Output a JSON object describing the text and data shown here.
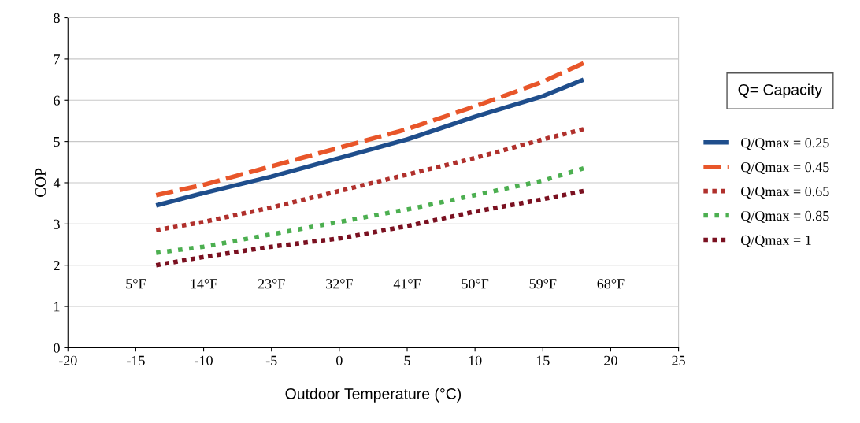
{
  "chart_data": {
    "type": "line",
    "xlabel": "Outdoor Temperature (°C)",
    "ylabel": "COP",
    "x": [
      -13.5,
      -10,
      -5,
      0,
      5,
      10,
      15,
      18
    ],
    "xlim": [
      -20,
      25
    ],
    "xticks": [
      -20,
      -15,
      -10,
      -5,
      0,
      5,
      10,
      15,
      20,
      25
    ],
    "ylim": [
      0,
      8
    ],
    "yticks": [
      0,
      1,
      2,
      3,
      4,
      5,
      6,
      7,
      8
    ],
    "grid": "y",
    "legend": "right",
    "marker": "none",
    "series": [
      {
        "name": "Q/Qmax = 0.25",
        "color": "#1f4e8c",
        "line_style": "solid",
        "values": [
          3.45,
          3.75,
          4.15,
          4.6,
          5.05,
          5.6,
          6.1,
          6.5
        ]
      },
      {
        "name": "Q/Qmax = 0.45",
        "color": "#e8562a",
        "line_style": "dashed",
        "values": [
          3.7,
          3.95,
          4.4,
          4.85,
          5.3,
          5.85,
          6.45,
          6.9
        ]
      },
      {
        "name": "Q/Qmax = 0.65",
        "color": "#b0302c",
        "line_style": "dotted",
        "values": [
          2.85,
          3.05,
          3.4,
          3.8,
          4.2,
          4.6,
          5.05,
          5.3
        ]
      },
      {
        "name": "Q/Qmax = 0.85",
        "color": "#4caf50",
        "line_style": "dotted",
        "values": [
          2.3,
          2.45,
          2.75,
          3.05,
          3.35,
          3.7,
          4.05,
          4.35
        ]
      },
      {
        "name": "Q/Qmax = 1",
        "color": "#7a1020",
        "line_style": "dotted",
        "values": [
          2.0,
          2.2,
          2.45,
          2.65,
          2.95,
          3.3,
          3.6,
          3.8
        ]
      }
    ],
    "annotations": [
      "5°F",
      "14°F",
      "23°F",
      "32°F",
      "41°F",
      "50°F",
      "59°F",
      "68°F",
      "Q= Capacity"
    ]
  }
}
